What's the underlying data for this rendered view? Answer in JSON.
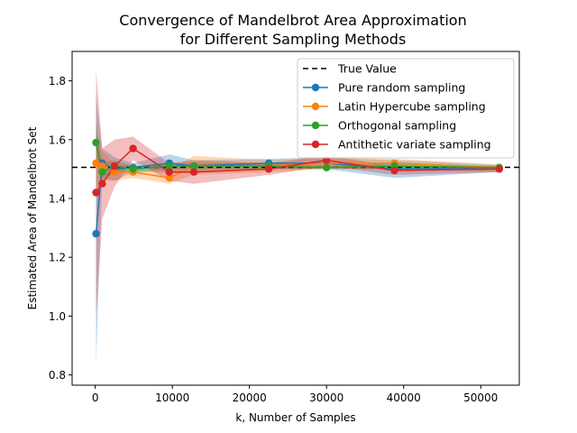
{
  "chart_data": {
    "type": "line",
    "title_line1": "Convergence of Mandelbrot Area Approximation",
    "title_line2": "for Different Sampling Methods",
    "xlabel": "k, Number of Samples",
    "ylabel": "Estimated Area of Mandelbrot Set",
    "xlim": [
      -3000,
      55000
    ],
    "ylim": [
      0.765,
      1.9
    ],
    "xticks": [
      0,
      10000,
      20000,
      30000,
      40000,
      50000
    ],
    "yticks": [
      0.8,
      1.0,
      1.2,
      1.4,
      1.6,
      1.8
    ],
    "legend_position": "top-right",
    "true_value": {
      "name": "True Value",
      "value": 1.506,
      "color": "#000000",
      "style": "dashed"
    },
    "series": [
      {
        "name": "Pure random sampling",
        "color": "#1f77b4",
        "x": [
          100,
          900,
          2500,
          4900,
          9600,
          12800,
          22500,
          30000,
          38800,
          52400
        ],
        "y": [
          1.28,
          1.52,
          1.5,
          1.505,
          1.52,
          1.51,
          1.52,
          1.52,
          1.5,
          1.505
        ],
        "lower": [
          0.83,
          1.47,
          1.46,
          1.49,
          1.49,
          1.49,
          1.5,
          1.5,
          1.47,
          1.49
        ],
        "upper": [
          1.75,
          1.57,
          1.54,
          1.52,
          1.55,
          1.53,
          1.535,
          1.54,
          1.53,
          1.515
        ]
      },
      {
        "name": "Latin Hypercube sampling",
        "color": "#ff7f0e",
        "x": [
          100,
          900,
          2500,
          4900,
          9600,
          12800,
          22500,
          30000,
          38800,
          52400
        ],
        "y": [
          1.52,
          1.51,
          1.49,
          1.49,
          1.47,
          1.51,
          1.51,
          1.52,
          1.52,
          1.505
        ],
        "lower": [
          1.4,
          1.46,
          1.46,
          1.47,
          1.45,
          1.48,
          1.49,
          1.5,
          1.5,
          1.49
        ],
        "upper": [
          1.62,
          1.56,
          1.52,
          1.51,
          1.5,
          1.545,
          1.53,
          1.54,
          1.535,
          1.515
        ]
      },
      {
        "name": "Orthogonal sampling",
        "color": "#2ca02c",
        "x": [
          100,
          900,
          2500,
          4900,
          9600,
          12800,
          22500,
          30000,
          38800,
          52400
        ],
        "y": [
          1.59,
          1.49,
          1.51,
          1.5,
          1.51,
          1.51,
          1.51,
          1.505,
          1.51,
          1.505
        ],
        "lower": [
          1.52,
          1.46,
          1.49,
          1.49,
          1.5,
          1.5,
          1.5,
          1.5,
          1.5,
          1.5
        ],
        "upper": [
          1.66,
          1.52,
          1.53,
          1.51,
          1.52,
          1.52,
          1.52,
          1.51,
          1.52,
          1.51
        ]
      },
      {
        "name": "Antithetic variate sampling",
        "color": "#d62728",
        "x": [
          100,
          900,
          2500,
          4900,
          9600,
          12800,
          22500,
          30000,
          38800,
          52400
        ],
        "y": [
          1.42,
          1.45,
          1.51,
          1.57,
          1.49,
          1.49,
          1.5,
          1.53,
          1.495,
          1.5
        ],
        "lower": [
          1.0,
          1.33,
          1.44,
          1.53,
          1.46,
          1.45,
          1.48,
          1.51,
          1.48,
          1.49
        ],
        "upper": [
          1.84,
          1.57,
          1.6,
          1.61,
          1.52,
          1.53,
          1.52,
          1.545,
          1.51,
          1.51
        ]
      }
    ]
  }
}
